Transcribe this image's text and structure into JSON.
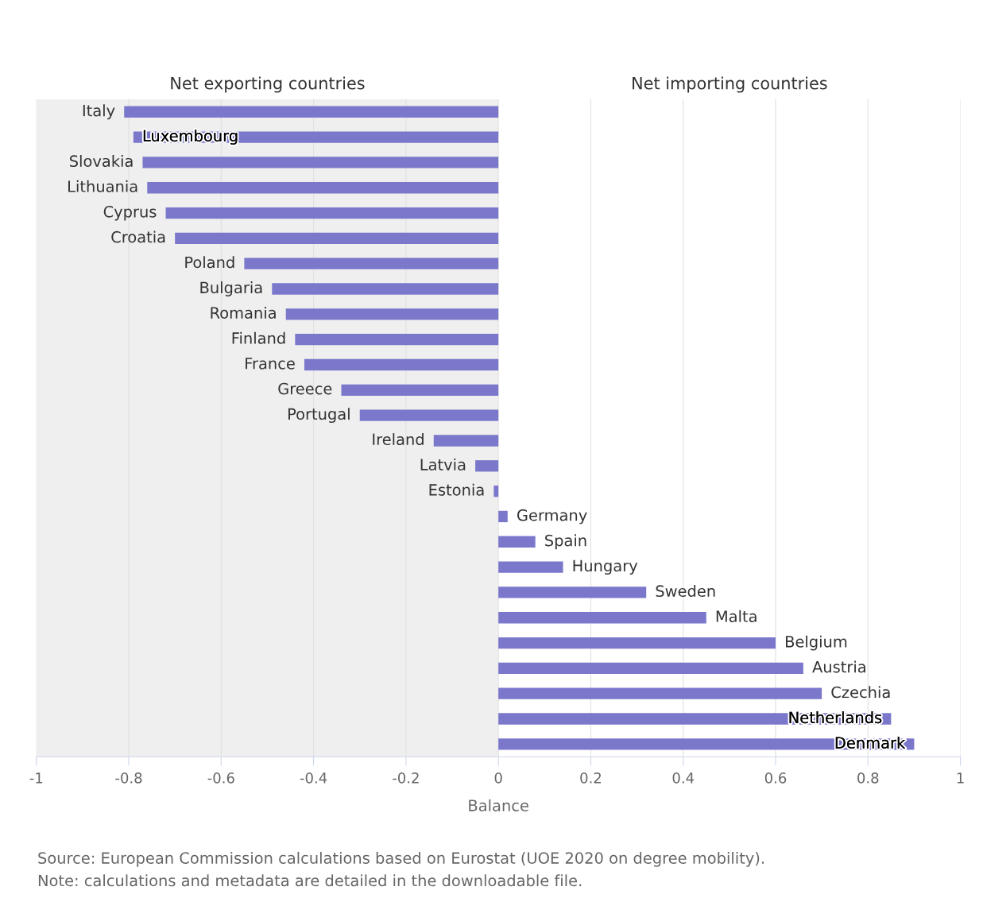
{
  "chart_data": {
    "type": "bar",
    "orientation": "horizontal",
    "categories": [
      "Italy",
      "Luxembourg",
      "Slovakia",
      "Lithuania",
      "Cyprus",
      "Croatia",
      "Poland",
      "Bulgaria",
      "Romania",
      "Finland",
      "France",
      "Greece",
      "Portugal",
      "Ireland",
      "Latvia",
      "Estonia",
      "Germany",
      "Spain",
      "Hungary",
      "Sweden",
      "Malta",
      "Belgium",
      "Austria",
      "Czechia",
      "Netherlands",
      "Denmark"
    ],
    "values": [
      -0.81,
      -0.79,
      -0.77,
      -0.76,
      -0.72,
      -0.7,
      -0.55,
      -0.49,
      -0.46,
      -0.44,
      -0.42,
      -0.34,
      -0.3,
      -0.14,
      -0.05,
      -0.01,
      0.02,
      0.08,
      0.14,
      0.32,
      0.45,
      0.6,
      0.66,
      0.7,
      0.85,
      0.9
    ],
    "color": "#7b78cc",
    "xlim": [
      -1,
      1
    ],
    "xticks": [
      -1,
      -0.8,
      -0.6,
      -0.4,
      -0.2,
      0,
      0.2,
      0.4,
      0.6,
      0.8,
      1
    ],
    "xlabel": "Balance",
    "grid": "x",
    "bands": [
      {
        "axis": "x",
        "from": -1,
        "to": 0,
        "label": "Net exporting countries",
        "color": "#efefef"
      }
    ],
    "annotations": [
      "Net importing countries",
      "Source: European Commission calculations based on Eurostat (UOE 2020 on degree mobility).",
      "Note: calculations and metadata are detailed in the downloadable file."
    ]
  }
}
